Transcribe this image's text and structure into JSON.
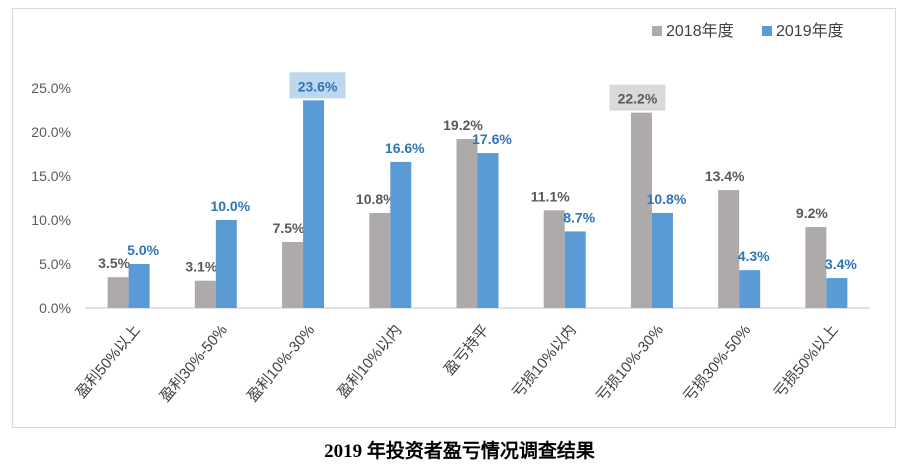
{
  "caption": "2019 年投资者盈亏情况调查结果",
  "chart_data": {
    "type": "bar",
    "title": "",
    "xlabel": "",
    "ylabel": "",
    "ylim": [
      0,
      25
    ],
    "yticks": [
      "0.0%",
      "5.0%",
      "10.0%",
      "15.0%",
      "20.0%",
      "25.0%"
    ],
    "grid": false,
    "legend_position": "top-right",
    "categories": [
      "盈利50%以上",
      "盈利30%-50%",
      "盈利10%-30%",
      "盈利10%以内",
      "盈亏持平",
      "亏损10%以内",
      "亏损10%-30%",
      "亏损30%-50%",
      "亏损50%以上"
    ],
    "series": [
      {
        "name": "2018年度",
        "color": "#aeaaaa",
        "label_color": "#595959",
        "values": [
          3.5,
          3.1,
          7.5,
          10.8,
          19.2,
          11.1,
          22.2,
          13.4,
          9.2
        ],
        "labels": [
          "3.5%",
          "3.1%",
          "7.5%",
          "10.8%",
          "19.2%",
          "11.1%",
          "22.2%",
          "13.4%",
          "9.2%"
        ]
      },
      {
        "name": "2019年度",
        "color": "#5b9bd5",
        "label_color": "#2e75b6",
        "values": [
          5.0,
          10.0,
          23.6,
          16.6,
          17.6,
          8.7,
          10.8,
          4.3,
          3.4
        ],
        "labels": [
          "5.0%",
          "10.0%",
          "23.6%",
          "16.6%",
          "17.6%",
          "8.7%",
          "10.8%",
          "4.3%",
          "3.4%"
        ]
      }
    ],
    "highlights": [
      {
        "series": 1,
        "index": 2,
        "box_color": "#bdd7ee"
      },
      {
        "series": 0,
        "index": 6,
        "box_color": "#d9d9d9"
      }
    ]
  }
}
